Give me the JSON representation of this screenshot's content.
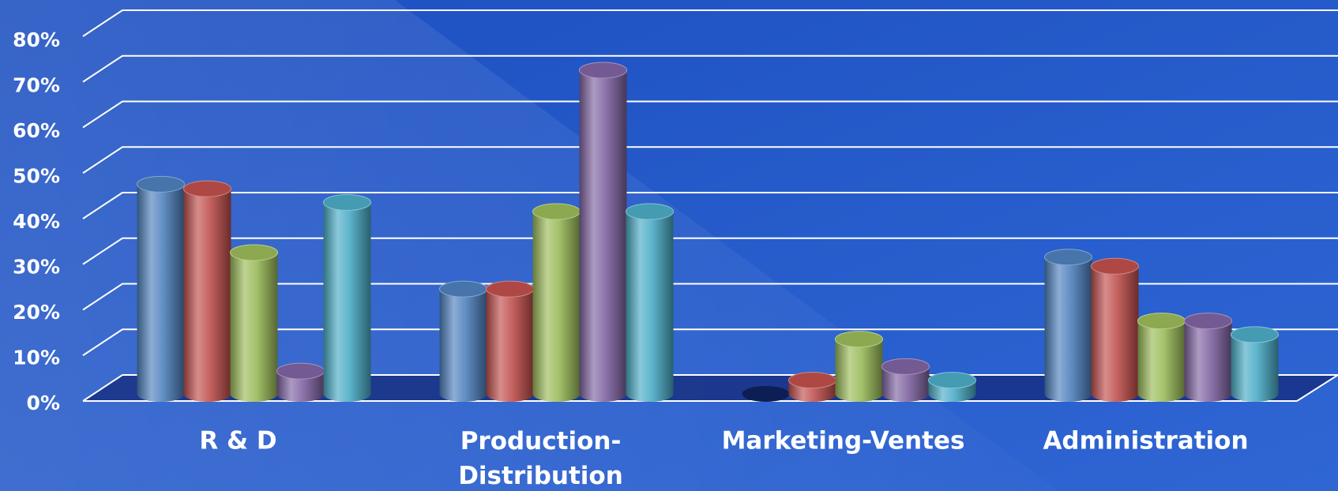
{
  "chart_data": {
    "type": "bar3d",
    "categories": [
      "R & D",
      "Production-Distribution",
      "Marketing-Ventes",
      "Administration"
    ],
    "series": [
      {
        "color": "#4f81bd",
        "values": [
          46,
          23,
          0,
          30
        ]
      },
      {
        "color": "#c0504d",
        "values": [
          45,
          23,
          3,
          28
        ]
      },
      {
        "color": "#9bbb59",
        "values": [
          31,
          40,
          12,
          16
        ]
      },
      {
        "color": "#8064a2",
        "values": [
          5,
          71,
          6,
          16
        ]
      },
      {
        "color": "#4bacc6",
        "values": [
          42,
          40,
          3,
          13
        ]
      }
    ],
    "ylim": [
      0,
      80
    ],
    "yticks": [
      {
        "value": 0,
        "label": "0%"
      },
      {
        "value": 10,
        "label": "10%"
      },
      {
        "value": 20,
        "label": "20%"
      },
      {
        "value": 30,
        "label": "30%"
      },
      {
        "value": 40,
        "label": "40%"
      },
      {
        "value": 50,
        "label": "50%"
      },
      {
        "value": 60,
        "label": "60%"
      },
      {
        "value": 70,
        "label": "70%"
      },
      {
        "value": 80,
        "label": "80%"
      }
    ],
    "grid": true
  }
}
